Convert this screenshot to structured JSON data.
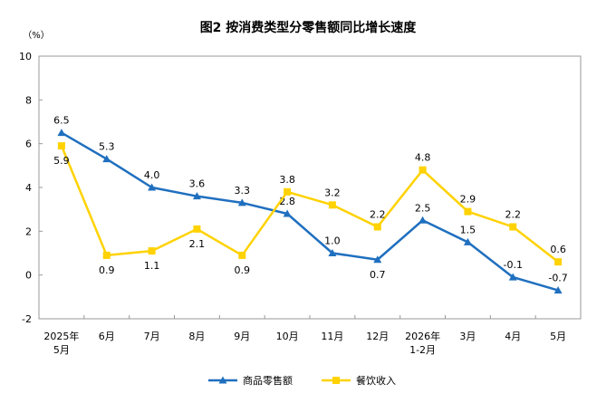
{
  "chart_data": {
    "type": "line",
    "title": "图2 按消费类型分零售额同比增长速度",
    "ylabel": "（%）",
    "xlabel": "",
    "ylim": [
      -2,
      10
    ],
    "yticks": [
      "-2",
      "0",
      "2",
      "4",
      "6",
      "8",
      "10"
    ],
    "categories": [
      [
        "2025年",
        "5月"
      ],
      [
        "6月"
      ],
      [
        "7月"
      ],
      [
        "8月"
      ],
      [
        "9月"
      ],
      [
        "10月"
      ],
      [
        "11月"
      ],
      [
        "12月"
      ],
      [
        "2026年",
        "1-2月"
      ],
      [
        "3月"
      ],
      [
        "4月"
      ],
      [
        "5月"
      ]
    ],
    "grid": false,
    "legend_position": "bottom",
    "series": [
      {
        "name": "商品零售额",
        "color": "#1f6fbf",
        "marker": "triangle",
        "values": [
          6.5,
          5.3,
          4.0,
          3.6,
          3.3,
          2.8,
          1.0,
          0.7,
          2.5,
          1.5,
          -0.1,
          -0.7
        ],
        "labels": [
          "6.5",
          "5.3",
          "4.0",
          "3.6",
          "3.3",
          "2.8",
          "1.0",
          "0.7",
          "2.5",
          "1.5",
          "-0.1",
          "-0.7"
        ]
      },
      {
        "name": "餐饮收入",
        "color": "#ffd200",
        "marker": "square",
        "values": [
          5.9,
          0.9,
          1.1,
          2.1,
          0.9,
          3.8,
          3.2,
          2.2,
          4.8,
          2.9,
          2.2,
          0.6
        ],
        "labels": [
          "5.9",
          "0.9",
          "1.1",
          "2.1",
          "0.9",
          "3.8",
          "3.2",
          "2.2",
          "4.8",
          "2.9",
          "2.2",
          "0.6"
        ]
      }
    ]
  }
}
